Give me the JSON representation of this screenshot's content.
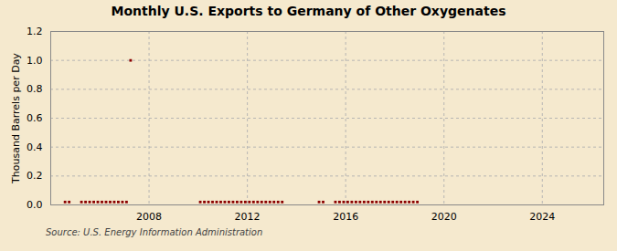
{
  "chart_data": {
    "type": "scatter",
    "title": "Monthly U.S. Exports to Germany of Other Oxygenates",
    "ylabel": "Thousand Barrels per Day",
    "caption": "Source: U.S. Energy Information Administration",
    "color": "#8b0000",
    "marker": "square",
    "grid": true,
    "xlim": [
      2004.0,
      2026.5
    ],
    "xticks": [
      2008,
      2012,
      2016,
      2020,
      2024
    ],
    "ylim": [
      0.0,
      1.2
    ],
    "yticks": [
      {
        "value": 0.0,
        "label": "0.0"
      },
      0.2,
      0.4,
      0.6,
      0.8,
      {
        "value": 1.0,
        "label": "1.0"
      },
      1.2
    ],
    "x": [
      2004.583,
      2004.75,
      2005.25,
      2005.417,
      2005.583,
      2005.75,
      2005.917,
      2006.083,
      2006.25,
      2006.417,
      2006.583,
      2006.75,
      2006.917,
      2007.083,
      2007.25,
      2010.083,
      2010.25,
      2010.417,
      2010.583,
      2010.75,
      2010.917,
      2011.083,
      2011.25,
      2011.417,
      2011.583,
      2011.75,
      2011.917,
      2012.083,
      2012.25,
      2012.417,
      2012.583,
      2012.75,
      2012.917,
      2013.083,
      2013.25,
      2013.417,
      2014.917,
      2015.083,
      2015.583,
      2015.75,
      2015.917,
      2016.083,
      2016.25,
      2016.417,
      2016.583,
      2016.75,
      2016.917,
      2017.083,
      2017.25,
      2017.417,
      2017.583,
      2017.75,
      2017.917,
      2018.083,
      2018.25,
      2018.417,
      2018.583,
      2018.75,
      2018.917
    ],
    "values": [
      0.02,
      0.02,
      0.02,
      0.02,
      0.02,
      0.02,
      0.02,
      0.02,
      0.02,
      0.02,
      0.02,
      0.02,
      0.02,
      0.02,
      1.0,
      0.02,
      0.02,
      0.02,
      0.02,
      0.02,
      0.02,
      0.02,
      0.02,
      0.02,
      0.02,
      0.02,
      0.02,
      0.02,
      0.02,
      0.02,
      0.02,
      0.02,
      0.02,
      0.02,
      0.02,
      0.02,
      0.02,
      0.02,
      0.02,
      0.02,
      0.02,
      0.02,
      0.02,
      0.02,
      0.02,
      0.02,
      0.02,
      0.02,
      0.02,
      0.02,
      0.02,
      0.02,
      0.02,
      0.02,
      0.02,
      0.02,
      0.02,
      0.02,
      0.02
    ]
  }
}
